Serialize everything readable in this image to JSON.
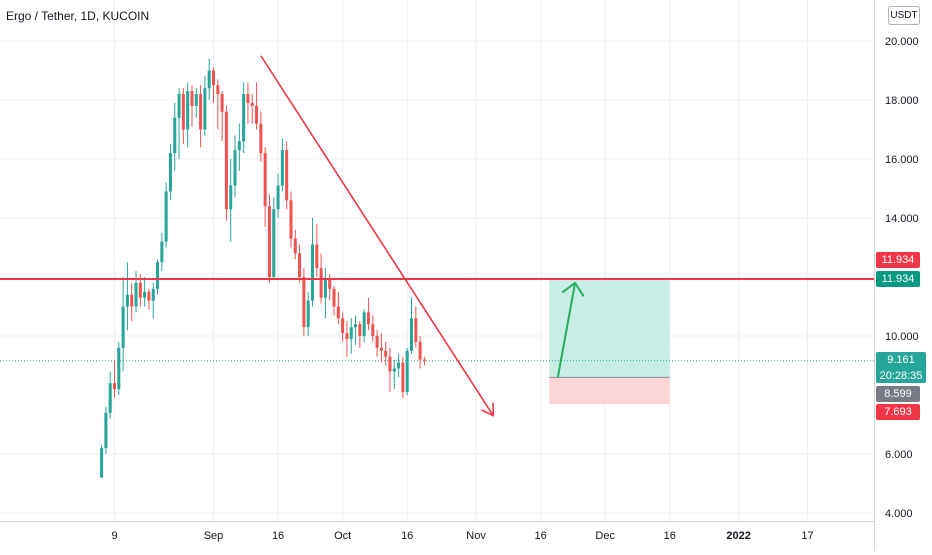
{
  "header": {
    "title": "Ergo / Tether, 1D, KUCOIN",
    "currency": "USDT"
  },
  "colors": {
    "up": "#26a69a",
    "down": "#ef5350",
    "line": "#f23645",
    "arrow_green": "#27ae60",
    "target_fill": "#c9eee6",
    "stop_fill": "#fcd5d7",
    "grid": "#eef0f3",
    "text": "#131722"
  },
  "chart_data": {
    "type": "candlestick",
    "symbol": "Ergo / Tether",
    "interval": "1D",
    "exchange": "KUCOIN",
    "y_range": [
      3.7,
      20.6
    ],
    "y_ticks": [
      "20.000",
      "18.000",
      "16.000",
      "14.000",
      "10.000",
      "6.000",
      "4.000"
    ],
    "y_tick_values": [
      20,
      18,
      16,
      14,
      10,
      6,
      4
    ],
    "x_ticks": [
      "9",
      "Sep",
      "16",
      "Oct",
      "16",
      "Nov",
      "16",
      "Dec",
      "16",
      "2022",
      "17"
    ],
    "x_tick_dates": [
      "2021-08-09",
      "2021-09-01",
      "2021-09-16",
      "2021-10-01",
      "2021-10-16",
      "2021-11-01",
      "2021-11-16",
      "2021-12-01",
      "2021-12-16",
      "2022-01-01",
      "2022-01-17"
    ],
    "first_candle_date": "2021-08-06",
    "ohlc": [
      [
        5.2,
        6.3,
        5.2,
        6.2
      ],
      [
        6.2,
        7.6,
        6.0,
        7.4
      ],
      [
        7.4,
        8.8,
        7.2,
        8.4
      ],
      [
        8.4,
        9.2,
        7.9,
        8.2
      ],
      [
        8.2,
        9.8,
        8.0,
        9.6
      ],
      [
        9.6,
        12.0,
        8.8,
        11.0
      ],
      [
        11.0,
        12.5,
        10.2,
        11.4
      ],
      [
        11.4,
        11.8,
        10.5,
        11.0
      ],
      [
        11.0,
        12.2,
        10.8,
        11.8
      ],
      [
        11.8,
        12.1,
        11.0,
        11.3
      ],
      [
        11.3,
        12.0,
        11.0,
        11.5
      ],
      [
        11.5,
        11.6,
        10.9,
        11.2
      ],
      [
        11.2,
        11.8,
        10.6,
        11.6
      ],
      [
        11.6,
        12.6,
        11.4,
        12.5
      ],
      [
        12.5,
        13.5,
        12.2,
        13.2
      ],
      [
        13.2,
        15.2,
        13.0,
        14.9
      ],
      [
        14.9,
        16.5,
        14.6,
        16.2
      ],
      [
        16.2,
        17.9,
        15.6,
        17.4
      ],
      [
        17.4,
        18.4,
        16.0,
        18.2
      ],
      [
        18.2,
        18.4,
        16.5,
        17.0
      ],
      [
        17.0,
        18.6,
        16.4,
        18.3
      ],
      [
        18.3,
        18.5,
        17.1,
        17.8
      ],
      [
        17.8,
        18.4,
        17.4,
        18.2
      ],
      [
        18.2,
        18.5,
        16.4,
        17.0
      ],
      [
        17.0,
        18.8,
        16.8,
        18.4
      ],
      [
        18.4,
        19.4,
        18.0,
        19.0
      ],
      [
        19.0,
        19.1,
        17.9,
        18.5
      ],
      [
        18.5,
        18.7,
        17.0,
        18.2
      ],
      [
        18.2,
        18.3,
        16.6,
        17.6
      ],
      [
        17.6,
        17.8,
        13.9,
        14.3
      ],
      [
        14.3,
        16.0,
        13.2,
        15.1
      ],
      [
        15.1,
        16.8,
        14.7,
        16.3
      ],
      [
        16.3,
        17.2,
        15.6,
        16.6
      ],
      [
        16.6,
        18.6,
        16.2,
        18.2
      ],
      [
        18.2,
        18.6,
        17.2,
        17.9
      ],
      [
        17.9,
        18.2,
        17.2,
        17.8
      ],
      [
        17.8,
        18.6,
        17.0,
        17.2
      ],
      [
        17.2,
        17.6,
        15.9,
        16.2
      ],
      [
        16.2,
        16.4,
        13.7,
        14.4
      ],
      [
        14.4,
        14.8,
        11.8,
        12.0
      ],
      [
        12.0,
        14.7,
        11.9,
        14.3
      ],
      [
        14.3,
        15.5,
        14.0,
        15.1
      ],
      [
        15.1,
        16.7,
        14.9,
        16.3
      ],
      [
        16.3,
        16.6,
        14.3,
        14.6
      ],
      [
        14.6,
        14.9,
        13.0,
        13.3
      ],
      [
        13.3,
        13.6,
        12.6,
        12.8
      ],
      [
        12.8,
        13.1,
        11.8,
        12.0
      ],
      [
        12.0,
        12.3,
        10.0,
        10.3
      ],
      [
        10.3,
        11.5,
        10.0,
        11.2
      ],
      [
        11.2,
        14.0,
        11.0,
        13.1
      ],
      [
        13.1,
        13.8,
        12.0,
        12.3
      ],
      [
        12.3,
        12.8,
        11.1,
        11.3
      ],
      [
        11.3,
        12.3,
        10.6,
        11.9
      ],
      [
        11.9,
        12.1,
        11.2,
        11.6
      ],
      [
        11.6,
        11.7,
        10.7,
        11.0
      ],
      [
        11.0,
        11.5,
        10.4,
        10.6
      ],
      [
        10.6,
        10.8,
        9.8,
        10.1
      ],
      [
        10.1,
        10.5,
        9.3,
        9.9
      ],
      [
        9.9,
        10.6,
        9.4,
        10.3
      ],
      [
        10.3,
        10.7,
        9.7,
        10.4
      ],
      [
        10.4,
        10.5,
        9.6,
        10.0
      ],
      [
        10.0,
        10.9,
        9.8,
        10.8
      ],
      [
        10.8,
        11.3,
        10.2,
        10.4
      ],
      [
        10.4,
        10.7,
        9.8,
        10.0
      ],
      [
        10.0,
        10.2,
        9.3,
        9.6
      ],
      [
        9.6,
        10.1,
        9.1,
        9.5
      ],
      [
        9.5,
        9.8,
        9.0,
        9.3
      ],
      [
        9.3,
        9.6,
        8.1,
        8.8
      ],
      [
        8.8,
        9.2,
        8.2,
        8.9
      ],
      [
        8.9,
        9.4,
        8.6,
        9.1
      ],
      [
        9.1,
        9.3,
        7.9,
        8.1
      ],
      [
        8.1,
        9.6,
        8.0,
        9.5
      ],
      [
        9.5,
        11.3,
        9.4,
        10.6
      ],
      [
        10.6,
        11.0,
        9.6,
        9.8
      ],
      [
        9.8,
        10.0,
        8.9,
        9.2
      ],
      [
        9.2,
        9.3,
        9.0,
        9.161
      ]
    ],
    "horizontal_level": 11.934,
    "trendline": {
      "start_date": "2021-09-12",
      "start_price": 19.5,
      "end_date": "2021-11-03",
      "end_price": 8.6
    },
    "trendline_arrowhead": {
      "date": "2021-11-05",
      "price": 7.3
    },
    "long_position": {
      "start_date": "2021-11-18",
      "end_date": "2021-12-16",
      "entry": 8.599,
      "target": 11.934,
      "stop": 7.693
    },
    "projection_arrow": {
      "start_date": "2021-11-20",
      "start_price": 8.6,
      "end_date": "2021-11-24",
      "end_price": 11.8
    },
    "last_price": 9.161
  },
  "price_axis_labels": {
    "level_top": "11.934",
    "level_bottom": "11.934",
    "last_price": "9.161",
    "countdown": "20:28:35",
    "entry": "8.599",
    "stop": "7.693"
  }
}
